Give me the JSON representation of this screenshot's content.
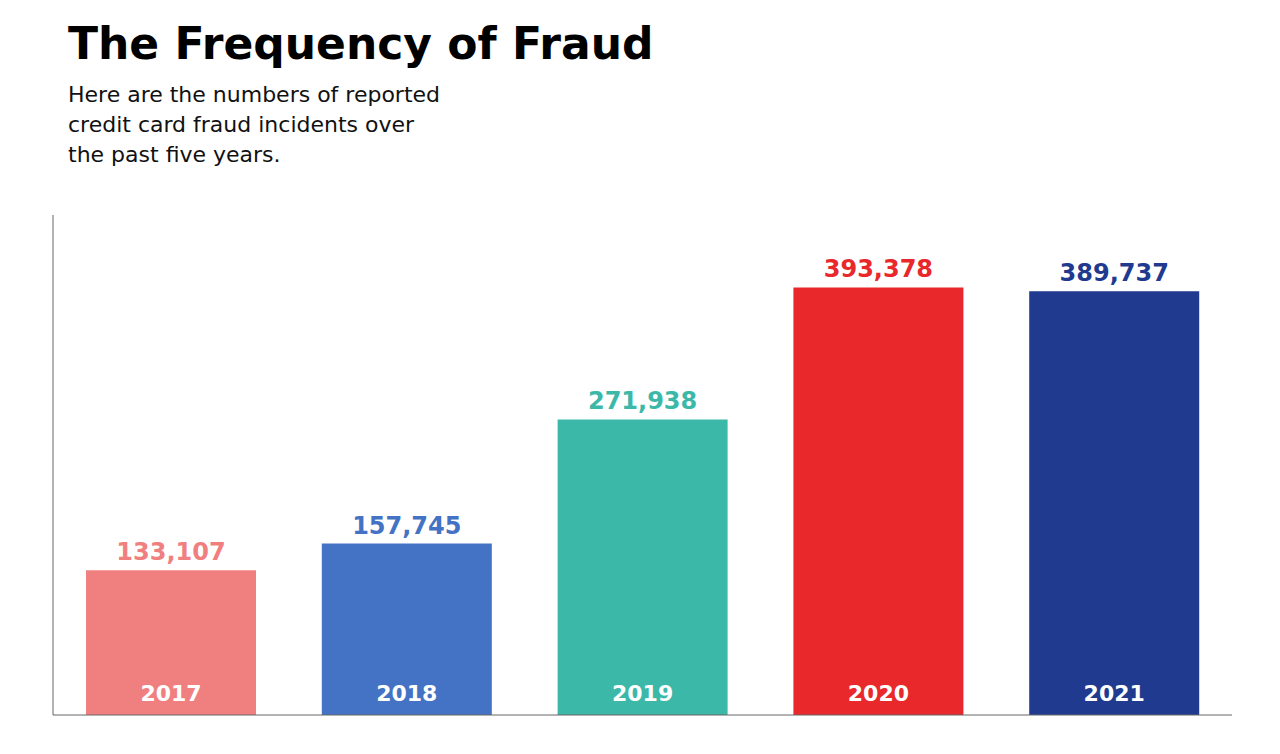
{
  "chart_data": {
    "type": "bar",
    "title": "The Frequency of Fraud",
    "subtitle": [
      "Here are the numbers of reported",
      "credit card fraud incidents over",
      "the past five years."
    ],
    "categories": [
      "2017",
      "2018",
      "2019",
      "2020",
      "2021"
    ],
    "values": [
      133107,
      157745,
      271938,
      393378,
      389737
    ],
    "value_labels": [
      "133,107",
      "157,745",
      "271,938",
      "393,378",
      "389,737"
    ],
    "colors": [
      "#F08080",
      "#4472C4",
      "#3CB8A8",
      "#E8282A",
      "#1F3A8F"
    ],
    "ylim": [
      0,
      460000
    ],
    "data_labels": true,
    "tick_labels": false,
    "grid": false
  }
}
